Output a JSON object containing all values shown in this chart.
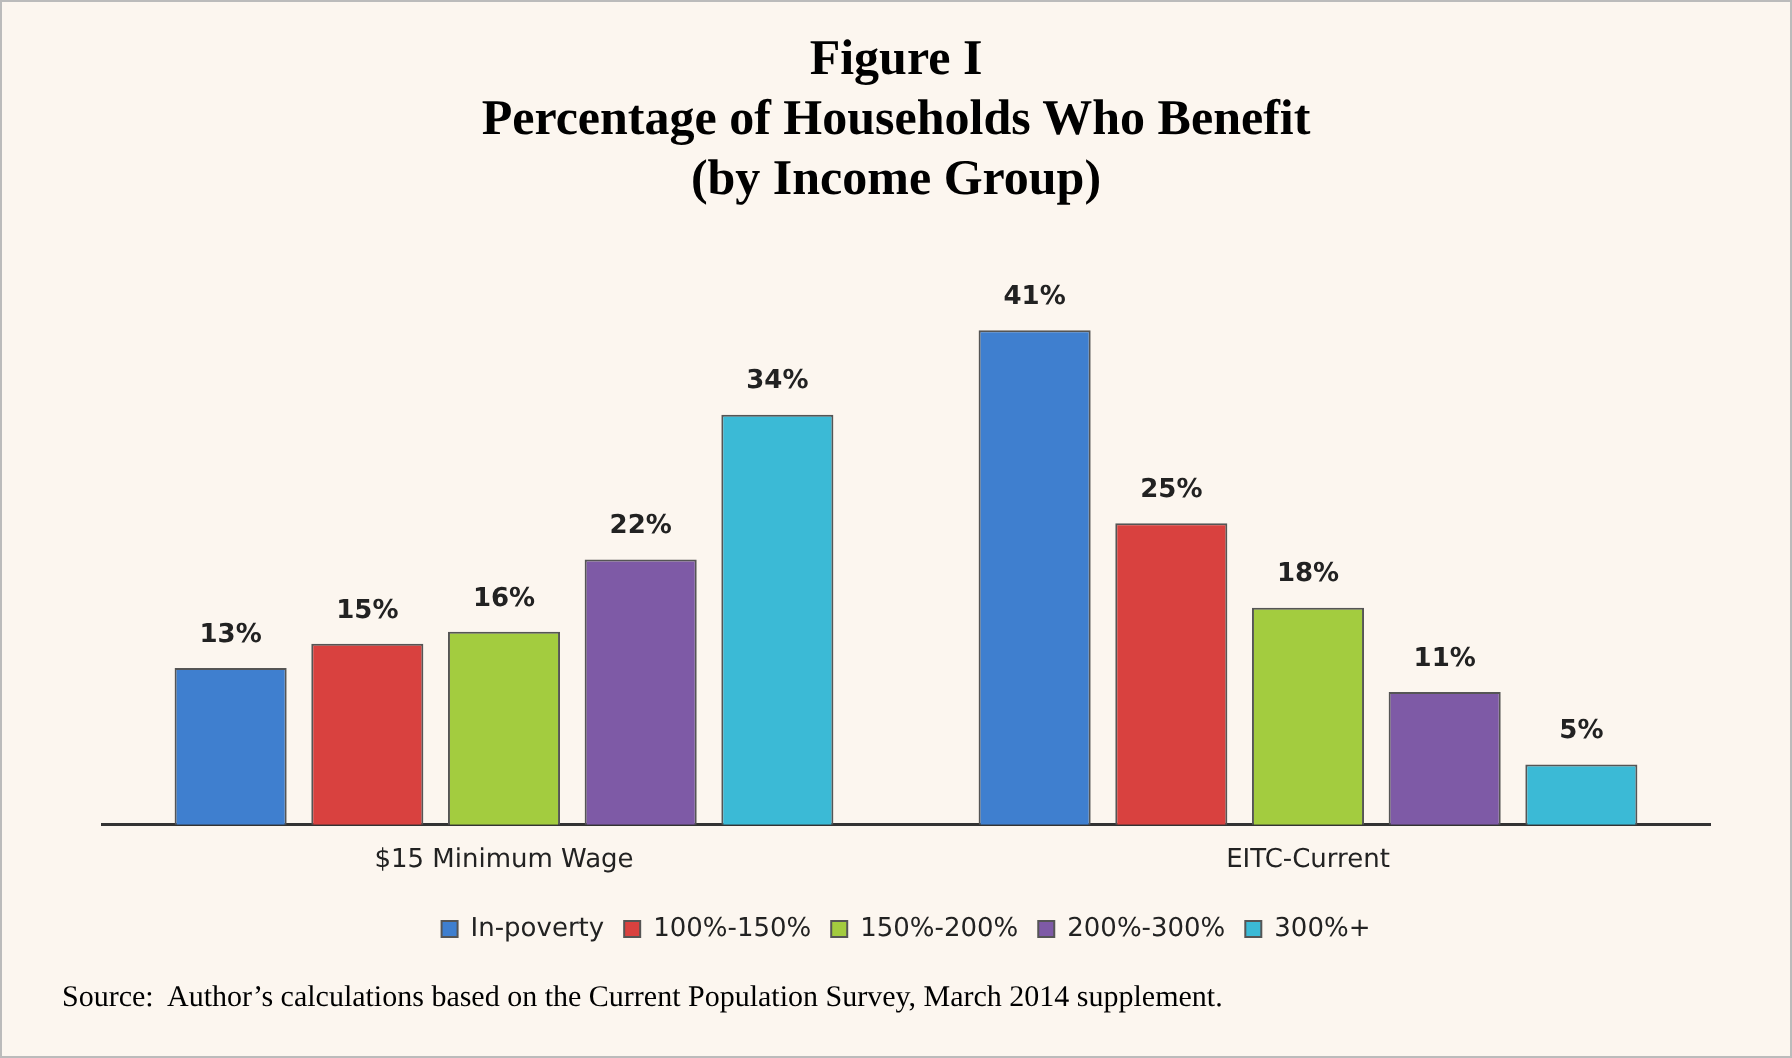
{
  "chart_data": {
    "type": "bar",
    "title": "Figure I\nPercentage of Households Who Benefit\n(by Income Group)",
    "categories": [
      "$15 Minimum Wage",
      "EITC-Current"
    ],
    "series": [
      {
        "name": "In-poverty",
        "color": "#3f7fcf",
        "values": [
          13,
          41
        ],
        "value_labels": [
          "13%",
          "41%"
        ]
      },
      {
        "name": "100%-150%",
        "color": "#d9413f",
        "values": [
          15,
          25
        ],
        "value_labels": [
          "15%",
          "25%"
        ]
      },
      {
        "name": "150%-200%",
        "color": "#a3cc3f",
        "values": [
          16,
          18
        ],
        "value_labels": [
          "16%",
          "18%"
        ]
      },
      {
        "name": "200%-300%",
        "color": "#7e5aa6",
        "values": [
          22,
          11
        ],
        "value_labels": [
          "22%",
          "11%"
        ]
      },
      {
        "name": "300%+",
        "color": "#3bbad6",
        "values": [
          34,
          5
        ],
        "value_labels": [
          "34%",
          "5%"
        ]
      }
    ],
    "tick_labels": "x",
    "grid": false,
    "legend": "bottom",
    "annotations": [
      "Source:  Author’s calculations based on the Current Population Survey, March 2014 supplement."
    ]
  }
}
